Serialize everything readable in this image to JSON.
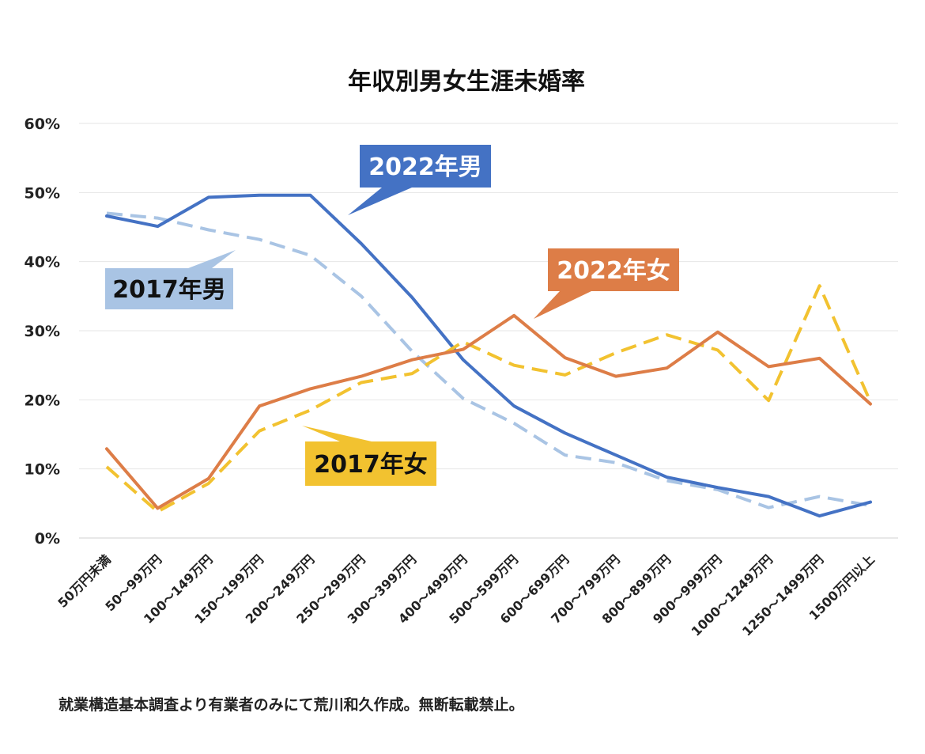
{
  "footnote": "就業構造基本調査より有業者のみにて荒川和久作成。無断転載禁止。",
  "chart_data": {
    "type": "line",
    "title": "年収別男女生涯未婚率",
    "xlabel": "",
    "ylabel": "",
    "ylim": [
      0,
      60
    ],
    "yticks": [
      0,
      10,
      20,
      30,
      40,
      50,
      60
    ],
    "ytick_labels": [
      "0%",
      "10%",
      "20%",
      "30%",
      "40%",
      "50%",
      "60%"
    ],
    "grid": true,
    "legend": "callouts",
    "categories": [
      "50万円未満",
      "50～99万円",
      "100～149万円",
      "150～199万円",
      "200～249万円",
      "250～299万円",
      "300～399万円",
      "400～499万円",
      "500～599万円",
      "600～699万円",
      "700～799万円",
      "800～899万円",
      "900～999万円",
      "1000～1249万円",
      "1250～1499万円",
      "1500万円以上"
    ],
    "series": [
      {
        "name": "2017年男",
        "color": "#a9c4e4",
        "dash": true,
        "values": [
          47.0,
          46.3,
          44.6,
          43.2,
          40.9,
          35.0,
          27.0,
          20.2,
          16.6,
          12.0,
          10.9,
          8.3,
          7.0,
          4.4,
          6.0,
          4.7
        ]
      },
      {
        "name": "2022年男",
        "color": "#4472c4",
        "dash": false,
        "values": [
          46.6,
          45.1,
          49.3,
          49.6,
          49.6,
          42.6,
          34.8,
          25.8,
          19.1,
          15.2,
          12.0,
          8.8,
          7.3,
          6.0,
          3.2,
          5.2
        ]
      },
      {
        "name": "2017年女",
        "color": "#f2c230",
        "dash": true,
        "values": [
          10.3,
          3.8,
          7.9,
          15.5,
          18.5,
          22.5,
          23.8,
          28.4,
          25.0,
          23.6,
          26.8,
          29.4,
          27.2,
          19.9,
          36.5,
          19.7
        ]
      },
      {
        "name": "2022年女",
        "color": "#dd7d47",
        "dash": false,
        "values": [
          12.9,
          4.3,
          8.6,
          19.1,
          21.6,
          23.4,
          25.8,
          27.3,
          32.2,
          26.1,
          23.4,
          24.6,
          29.8,
          24.8,
          26.0,
          19.4
        ]
      }
    ],
    "callouts": [
      {
        "label": "2022年男",
        "series": 1,
        "bg": "#4472c4",
        "fg": "#ffffff"
      },
      {
        "label": "2017年男",
        "series": 0,
        "bg": "#a9c4e4",
        "fg": "#111111"
      },
      {
        "label": "2022年女",
        "series": 3,
        "bg": "#dd7d47",
        "fg": "#ffffff"
      },
      {
        "label": "2017年女",
        "series": 2,
        "bg": "#f2c230",
        "fg": "#111111"
      }
    ]
  }
}
